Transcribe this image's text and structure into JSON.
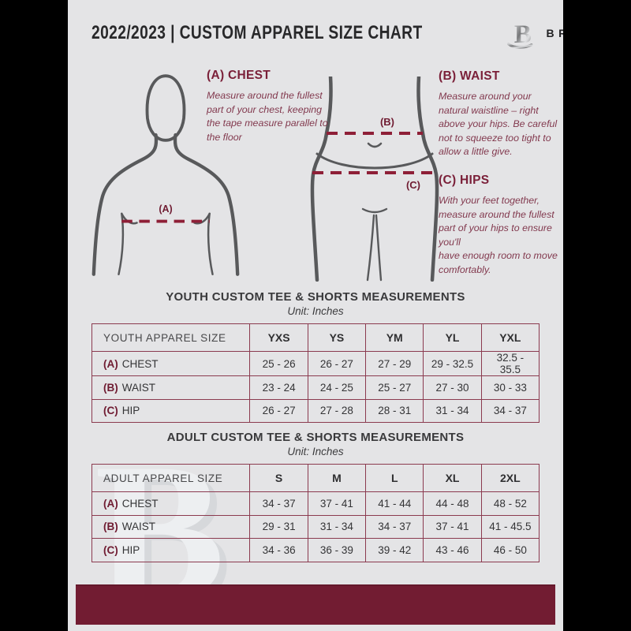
{
  "header": {
    "title": "2022/2023  |  CUSTOM APPAREL SIZE CHART",
    "brand": "BREAKAWAY",
    "logo_icon": "breakaway-b-logo"
  },
  "measurements": {
    "chest": {
      "heading": "(A) CHEST",
      "body": "Measure around the fullest part of your chest, keeping the tape measure parallel to the floor"
    },
    "waist": {
      "heading": "(B) WAIST",
      "body": "Measure around your natural waistline – right above your hips. Be careful not to squeeze too tight to allow a little give."
    },
    "hips": {
      "heading": "(C) HIPS",
      "body": "With your feet together, measure around the fullest part of your hips to ensure you'll\nhave enough room to move comfortably."
    }
  },
  "diagram": {
    "chest_label": "(A)",
    "waist_label": "(B)",
    "hip_label": "(C)"
  },
  "youth_table": {
    "title": "YOUTH CUSTOM TEE & SHORTS MEASUREMENTS",
    "unit": "Unit: Inches",
    "size_header": "YOUTH APPAREL SIZE",
    "sizes": [
      "YXS",
      "YS",
      "YM",
      "YL",
      "YXL"
    ],
    "rows": [
      {
        "prefix": "(A)",
        "label": "CHEST",
        "values": [
          "25 - 26",
          "26 - 27",
          "27 - 29",
          "29 - 32.5",
          "32.5 - 35.5"
        ]
      },
      {
        "prefix": "(B)",
        "label": "WAIST",
        "values": [
          "23 - 24",
          "24 - 25",
          "25 - 27",
          "27 - 30",
          "30 - 33"
        ]
      },
      {
        "prefix": "(C)",
        "label": "HIP",
        "values": [
          "26 - 27",
          "27 - 28",
          "28 - 31",
          "31 - 34",
          "34 - 37"
        ]
      }
    ]
  },
  "adult_table": {
    "title": "ADULT CUSTOM TEE & SHORTS MEASUREMENTS",
    "unit": "Unit: Inches",
    "size_header": "ADULT APPAREL SIZE",
    "sizes": [
      "S",
      "M",
      "L",
      "XL",
      "2XL"
    ],
    "rows": [
      {
        "prefix": "(A)",
        "label": "CHEST",
        "values": [
          "34 - 37",
          "37 - 41",
          "41 - 44",
          "44 - 48",
          "48 - 52"
        ]
      },
      {
        "prefix": "(B)",
        "label": "WAIST",
        "values": [
          "29 - 31",
          "31 - 34",
          "34 - 37",
          "37 - 41",
          "41 - 45.5"
        ]
      },
      {
        "prefix": "(C)",
        "label": "HIP",
        "values": [
          "34 - 36",
          "36 - 39",
          "39 - 42",
          "43 - 46",
          "46 - 50"
        ]
      }
    ]
  },
  "watermark": "B",
  "colors": {
    "page_bg": "#e4e4e6",
    "maroon_bar": "#721c32",
    "heading_maroon": "#7a1f38",
    "table_border": "#8b3a4f",
    "dashed_line": "#8e1f37",
    "figure_stroke": "#58595b",
    "dark_text": "#343436"
  }
}
